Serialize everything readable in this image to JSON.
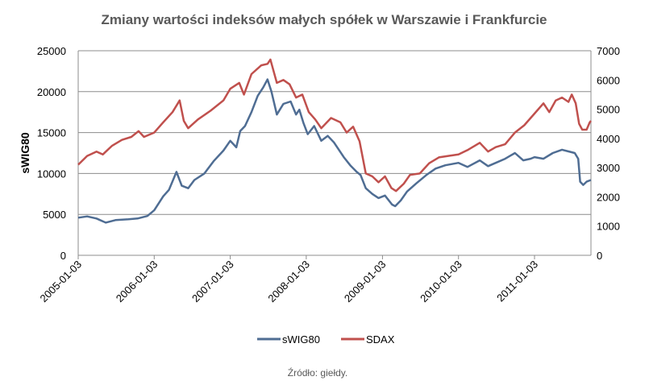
{
  "chart_data": {
    "type": "line",
    "title": "Zmiany wartości indeksów małych spółek w Warszawie i Frankfurcie",
    "ylabel": "sWIG80",
    "ylabel_right": "",
    "source": "Źródło: giełdy.",
    "x_ticks": [
      "2005-01-03",
      "2006-01-03",
      "2007-01-03",
      "2008-01-03",
      "2009-01-03",
      "2010-01-03",
      "2011-01-03"
    ],
    "y_left_ticks": [
      "0",
      "5000",
      "10000",
      "15000",
      "20000",
      "25000"
    ],
    "y_right_ticks": [
      "0",
      "1000",
      "2000",
      "3000",
      "4000",
      "5000",
      "6000",
      "7000"
    ],
    "ylim_left": [
      0,
      25000
    ],
    "ylim_right": [
      0,
      7000
    ],
    "xlim": [
      "2005-01-03",
      "2011-10-01"
    ],
    "grid": "horizontal",
    "legend": "bottom",
    "series": [
      {
        "name": "sWIG80",
        "axis": "left",
        "color": "#4F6D93",
        "points": [
          [
            "2005-01-03",
            4600
          ],
          [
            "2005-02-15",
            4750
          ],
          [
            "2005-04-01",
            4500
          ],
          [
            "2005-05-15",
            4000
          ],
          [
            "2005-07-01",
            4300
          ],
          [
            "2005-09-01",
            4400
          ],
          [
            "2005-10-15",
            4500
          ],
          [
            "2005-12-01",
            4800
          ],
          [
            "2006-01-03",
            5500
          ],
          [
            "2006-02-15",
            7200
          ],
          [
            "2006-03-15",
            8000
          ],
          [
            "2006-04-20",
            10200
          ],
          [
            "2006-05-15",
            8500
          ],
          [
            "2006-06-15",
            8200
          ],
          [
            "2006-07-15",
            9200
          ],
          [
            "2006-09-01",
            10000
          ],
          [
            "2006-10-15",
            11500
          ],
          [
            "2006-12-01",
            12800
          ],
          [
            "2007-01-03",
            14000
          ],
          [
            "2007-02-01",
            13200
          ],
          [
            "2007-02-20",
            15200
          ],
          [
            "2007-03-15",
            15800
          ],
          [
            "2007-04-15",
            17500
          ],
          [
            "2007-05-15",
            19500
          ],
          [
            "2007-06-10",
            20500
          ],
          [
            "2007-07-01",
            21500
          ],
          [
            "2007-07-20",
            20000
          ],
          [
            "2007-08-15",
            17200
          ],
          [
            "2007-09-15",
            18500
          ],
          [
            "2007-10-20",
            18800
          ],
          [
            "2007-11-15",
            17200
          ],
          [
            "2007-12-01",
            17800
          ],
          [
            "2007-12-20",
            16200
          ],
          [
            "2008-01-10",
            14800
          ],
          [
            "2008-02-10",
            15800
          ],
          [
            "2008-03-15",
            14000
          ],
          [
            "2008-04-15",
            14600
          ],
          [
            "2008-05-15",
            13800
          ],
          [
            "2008-07-01",
            12000
          ],
          [
            "2008-08-01",
            11000
          ],
          [
            "2008-09-01",
            10200
          ],
          [
            "2008-09-20",
            9800
          ],
          [
            "2008-10-15",
            8200
          ],
          [
            "2008-11-15",
            7500
          ],
          [
            "2008-12-15",
            7000
          ],
          [
            "2009-01-15",
            7300
          ],
          [
            "2009-02-18",
            6200
          ],
          [
            "2009-03-05",
            6000
          ],
          [
            "2009-04-01",
            6700
          ],
          [
            "2009-05-01",
            7800
          ],
          [
            "2009-06-15",
            8800
          ],
          [
            "2009-08-01",
            9800
          ],
          [
            "2009-09-15",
            10600
          ],
          [
            "2009-11-01",
            11000
          ],
          [
            "2010-01-03",
            11300
          ],
          [
            "2010-02-15",
            10800
          ],
          [
            "2010-04-15",
            11600
          ],
          [
            "2010-05-25",
            10900
          ],
          [
            "2010-07-01",
            11300
          ],
          [
            "2010-08-15",
            11800
          ],
          [
            "2010-10-01",
            12500
          ],
          [
            "2010-11-10",
            11600
          ],
          [
            "2010-12-15",
            11800
          ],
          [
            "2011-01-03",
            12000
          ],
          [
            "2011-02-15",
            11800
          ],
          [
            "2011-04-01",
            12500
          ],
          [
            "2011-05-15",
            12900
          ],
          [
            "2011-06-15",
            12700
          ],
          [
            "2011-07-15",
            12500
          ],
          [
            "2011-08-01",
            11800
          ],
          [
            "2011-08-10",
            9000
          ],
          [
            "2011-08-25",
            8600
          ],
          [
            "2011-09-10",
            9000
          ],
          [
            "2011-10-01",
            9200
          ]
        ]
      },
      {
        "name": "SDAX",
        "axis": "right",
        "color": "#C0504D",
        "points": [
          [
            "2005-01-03",
            3100
          ],
          [
            "2005-02-15",
            3400
          ],
          [
            "2005-04-01",
            3550
          ],
          [
            "2005-05-01",
            3450
          ],
          [
            "2005-06-15",
            3750
          ],
          [
            "2005-08-01",
            3950
          ],
          [
            "2005-09-15",
            4050
          ],
          [
            "2005-10-20",
            4250
          ],
          [
            "2005-11-15",
            4050
          ],
          [
            "2006-01-03",
            4200
          ],
          [
            "2006-02-15",
            4550
          ],
          [
            "2006-04-01",
            4900
          ],
          [
            "2006-05-05",
            5300
          ],
          [
            "2006-05-25",
            4600
          ],
          [
            "2006-06-15",
            4350
          ],
          [
            "2006-08-01",
            4650
          ],
          [
            "2006-10-01",
            4950
          ],
          [
            "2006-12-01",
            5300
          ],
          [
            "2007-01-03",
            5700
          ],
          [
            "2007-02-15",
            5900
          ],
          [
            "2007-03-10",
            5500
          ],
          [
            "2007-04-15",
            6200
          ],
          [
            "2007-06-01",
            6500
          ],
          [
            "2007-07-01",
            6550
          ],
          [
            "2007-07-15",
            6700
          ],
          [
            "2007-08-15",
            5900
          ],
          [
            "2007-09-15",
            6000
          ],
          [
            "2007-10-15",
            5850
          ],
          [
            "2007-11-15",
            5400
          ],
          [
            "2007-12-15",
            5500
          ],
          [
            "2008-01-15",
            4900
          ],
          [
            "2008-02-15",
            4650
          ],
          [
            "2008-03-15",
            4350
          ],
          [
            "2008-05-01",
            4700
          ],
          [
            "2008-06-15",
            4550
          ],
          [
            "2008-07-15",
            4200
          ],
          [
            "2008-08-15",
            4400
          ],
          [
            "2008-09-15",
            3900
          ],
          [
            "2008-10-15",
            2800
          ],
          [
            "2008-11-15",
            2700
          ],
          [
            "2008-12-15",
            2500
          ],
          [
            "2009-01-15",
            2700
          ],
          [
            "2009-02-15",
            2300
          ],
          [
            "2009-03-09",
            2200
          ],
          [
            "2009-04-15",
            2450
          ],
          [
            "2009-05-15",
            2750
          ],
          [
            "2009-07-01",
            2800
          ],
          [
            "2009-08-15",
            3150
          ],
          [
            "2009-10-01",
            3350
          ],
          [
            "2009-11-15",
            3400
          ],
          [
            "2010-01-03",
            3450
          ],
          [
            "2010-02-15",
            3600
          ],
          [
            "2010-04-15",
            3850
          ],
          [
            "2010-05-25",
            3550
          ],
          [
            "2010-07-01",
            3700
          ],
          [
            "2010-08-15",
            3800
          ],
          [
            "2010-10-01",
            4200
          ],
          [
            "2010-11-15",
            4450
          ],
          [
            "2011-01-03",
            4850
          ],
          [
            "2011-02-15",
            5200
          ],
          [
            "2011-03-15",
            4900
          ],
          [
            "2011-04-15",
            5300
          ],
          [
            "2011-05-15",
            5400
          ],
          [
            "2011-06-15",
            5250
          ],
          [
            "2011-07-01",
            5500
          ],
          [
            "2011-07-20",
            5200
          ],
          [
            "2011-08-05",
            4500
          ],
          [
            "2011-08-20",
            4300
          ],
          [
            "2011-09-10",
            4300
          ],
          [
            "2011-09-25",
            4550
          ],
          [
            "2011-10-01",
            4600
          ]
        ]
      }
    ]
  }
}
